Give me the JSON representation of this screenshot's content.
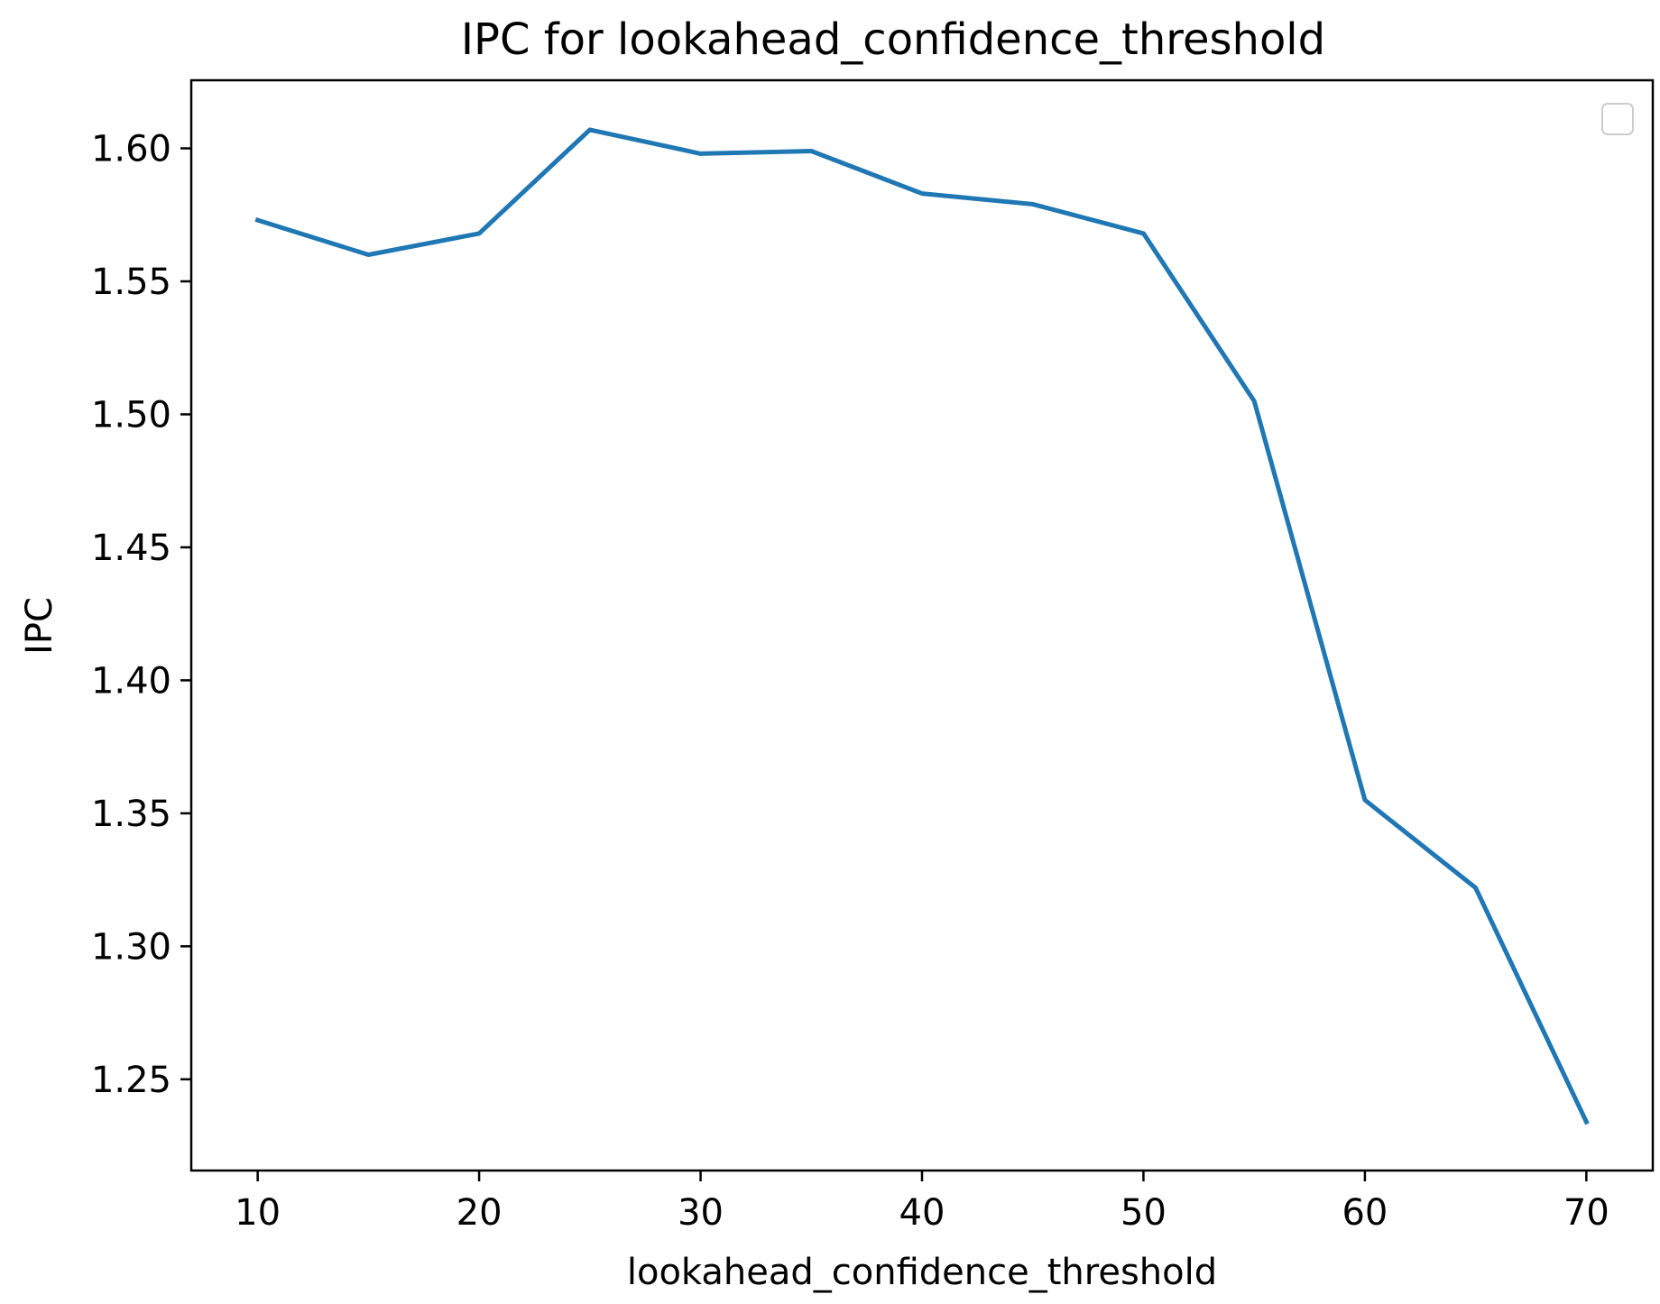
{
  "chart_data": {
    "type": "line",
    "title": "IPC for lookahead_confidence_threshold",
    "xlabel": "lookahead_confidence_threshold",
    "ylabel": "IPC",
    "x": [
      10,
      15,
      20,
      25,
      30,
      35,
      40,
      45,
      50,
      55,
      60,
      65,
      70
    ],
    "series": [
      {
        "color": "#1f77b4",
        "values": [
          1.573,
          1.56,
          1.568,
          1.607,
          1.598,
          1.599,
          1.583,
          1.579,
          1.568,
          1.505,
          1.355,
          1.322,
          1.234
        ]
      }
    ],
    "xticks": [
      10,
      20,
      30,
      40,
      50,
      60,
      70
    ],
    "xtick_labels": [
      "10",
      "20",
      "30",
      "40",
      "50",
      "60",
      "70"
    ],
    "yticks": [
      1.25,
      1.3,
      1.35,
      1.4,
      1.45,
      1.5,
      1.55,
      1.6
    ],
    "ytick_labels": [
      "1.25",
      "1.30",
      "1.35",
      "1.40",
      "1.45",
      "1.50",
      "1.55",
      "1.60"
    ],
    "xlim": [
      7,
      73
    ],
    "ylim": [
      1.2157,
      1.6256
    ],
    "grid": false,
    "legend": "top-right",
    "legend_entries": []
  }
}
